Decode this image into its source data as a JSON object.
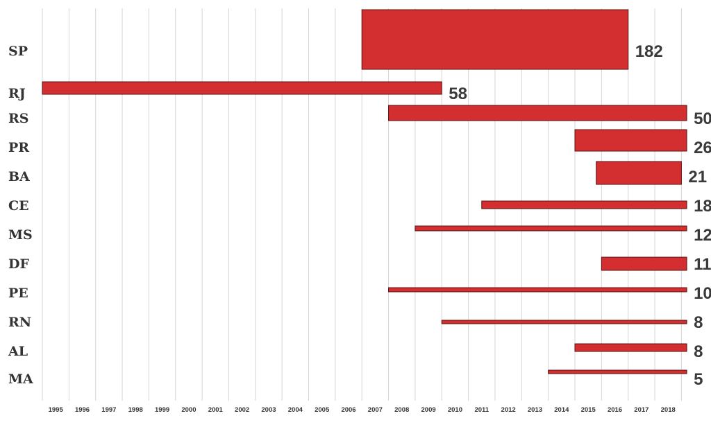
{
  "chart_data": {
    "type": "bar",
    "orientation": "horizontal-timeline",
    "x": [
      "1995",
      "1996",
      "1997",
      "1998",
      "1999",
      "2000",
      "2001",
      "2002",
      "2003",
      "2004",
      "2005",
      "2006",
      "2007",
      "2008",
      "2009",
      "2010",
      "2011",
      "2012",
      "2013",
      "2014",
      "2015",
      "2016",
      "2017",
      "2018"
    ],
    "grid": true,
    "bar_color": "#d32f30",
    "series": [
      {
        "category": "SP",
        "value": "182",
        "start": 2006.0,
        "end": 2016.0
      },
      {
        "category": "RJ",
        "value": "58",
        "start": 1994.0,
        "end": 2009.0
      },
      {
        "category": "RS",
        "value": "50",
        "start": 2007.0,
        "end": 2018.2
      },
      {
        "category": "PR",
        "value": "26",
        "start": 2014.0,
        "end": 2018.2
      },
      {
        "category": "BA",
        "value": "21",
        "start": 2014.8,
        "end": 2018.0
      },
      {
        "category": "CE",
        "value": "18",
        "start": 2010.5,
        "end": 2018.2
      },
      {
        "category": "MS",
        "value": "12",
        "start": 2008.0,
        "end": 2018.2
      },
      {
        "category": "DF",
        "value": "11",
        "start": 2015.0,
        "end": 2018.2
      },
      {
        "category": "PE",
        "value": "10",
        "start": 2007.0,
        "end": 2018.2
      },
      {
        "category": "RN",
        "value": "8",
        "start": 2009.0,
        "end": 2018.2
      },
      {
        "category": "AL",
        "value": "8",
        "start": 2014.0,
        "end": 2018.2
      },
      {
        "category": "MA",
        "value": "5",
        "start": 2013.0,
        "end": 2018.2
      }
    ]
  }
}
